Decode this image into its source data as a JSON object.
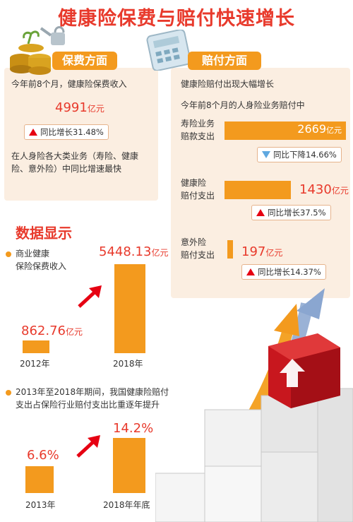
{
  "title": "健康险保费与赔付快速增长",
  "premium": {
    "heading": "保费方面",
    "intro": "今年前8个月，健康险保费收入",
    "amount": "4991",
    "unit": "亿元",
    "growth": "同比增长31.48%",
    "note": "在人身险各大类业务（寿险、健康险、意外险）中同比增速最快"
  },
  "claims": {
    "heading": "赔付方面",
    "intro1": "健康险赔付出现大幅增长",
    "intro2": "今年前8个月的人身险业务赔付中",
    "rows": [
      {
        "label1": "寿险业务",
        "label2": "赔款支出",
        "amount": "2669",
        "unit": "亿元",
        "change": "同比下降14.66%",
        "direction": "down",
        "bar_fraction": 0.52
      },
      {
        "label1": "健康险",
        "label2": "赔付支出",
        "amount": "1430",
        "unit": "亿元",
        "change": "同比增长37.5%",
        "direction": "up",
        "bar_fraction": 0.28
      },
      {
        "label1": "意外险",
        "label2": "赔付支出",
        "amount": "197",
        "unit": "亿元",
        "change": "同比增长14.37%",
        "direction": "up",
        "bar_fraction": 0.04
      }
    ]
  },
  "data_section": {
    "heading": "数据显示",
    "item1": {
      "label1": "商业健康",
      "label2": "保险保费收入",
      "bars": [
        {
          "year": "2012年",
          "value": "862.76",
          "unit": "亿元",
          "num": 862.76
        },
        {
          "year": "2018年",
          "value": "5448.13",
          "unit": "亿元",
          "num": 5448.13
        }
      ]
    },
    "item2": {
      "label1": "2013年至2018年期间，我国健康险赔付",
      "label2": "支出占保险行业赔付支出比重逐年提升",
      "bars": [
        {
          "year": "2013年",
          "value": "6.6%",
          "num": 6.6
        },
        {
          "year": "2018年年底",
          "value": "14.2%",
          "num": 14.2
        }
      ]
    }
  },
  "colors": {
    "accent": "#e83a2c",
    "bar": "#f39a1e",
    "panel": "#fbeee1",
    "up": "#e60012",
    "down": "#5fa8e0"
  }
}
